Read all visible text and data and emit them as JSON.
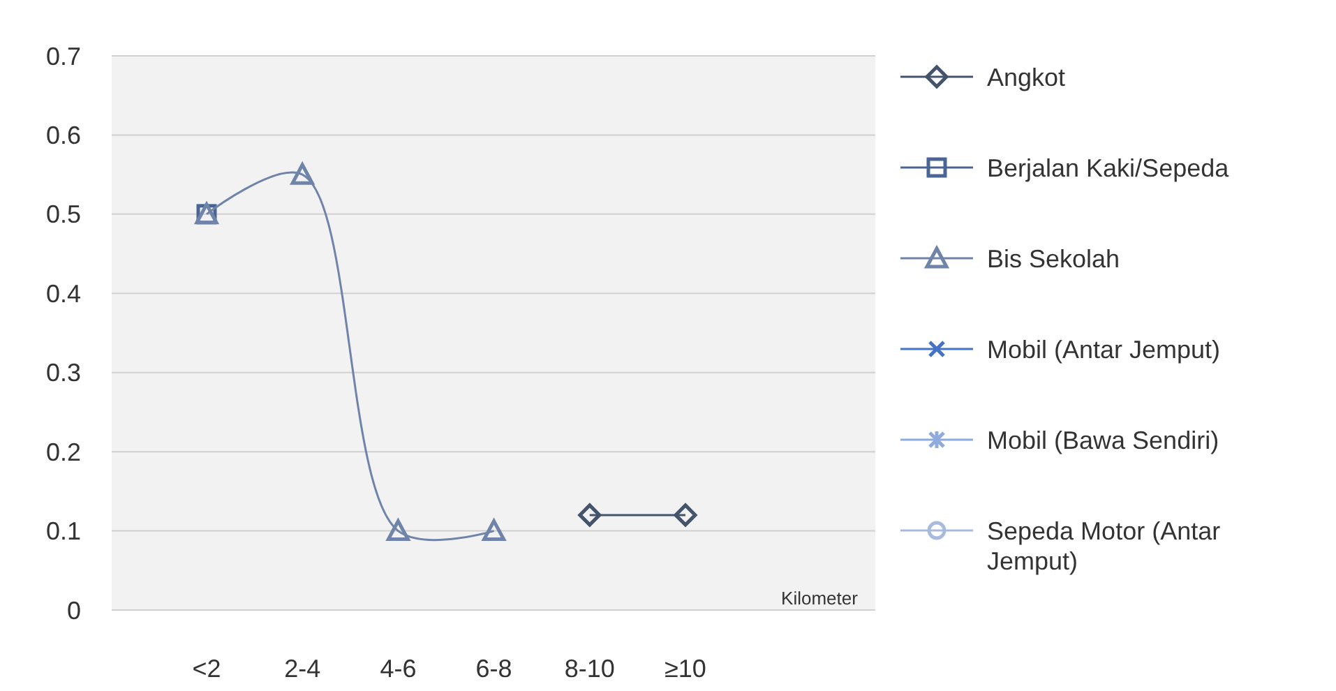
{
  "chart_data": {
    "type": "line",
    "xlabel": "Kilometer",
    "categories": [
      "<2",
      "2-4",
      "4-6",
      "6-8",
      "8-10",
      "≥10"
    ],
    "ylim": [
      0,
      0.7
    ],
    "yticks": [
      0,
      0.1,
      0.2,
      0.3,
      0.4,
      0.5,
      0.6,
      0.7
    ],
    "grid": "y",
    "legend": "right",
    "series": [
      {
        "name": "Angkot",
        "color": "#44546a",
        "marker": "diamond",
        "values": [
          null,
          null,
          null,
          null,
          0.12,
          0.12
        ]
      },
      {
        "name": "Berjalan Kaki/Sepeda",
        "color": "#4a6496",
        "marker": "square",
        "values": [
          0.5,
          null,
          null,
          null,
          null,
          null
        ]
      },
      {
        "name": "Bis Sekolah",
        "color": "#6f84a8",
        "marker": "triangle",
        "values": [
          0.5,
          0.55,
          0.1,
          0.1,
          null,
          null
        ]
      },
      {
        "name": "Mobil (Antar Jemput)",
        "color": "#4472c4",
        "marker": "cross",
        "values": [
          null,
          null,
          null,
          null,
          null,
          null
        ]
      },
      {
        "name": "Mobil (Bawa Sendiri)",
        "color": "#8faadc",
        "marker": "star",
        "values": [
          null,
          null,
          null,
          null,
          null,
          null
        ]
      },
      {
        "name": "Sepeda Motor (Antar Jemput)",
        "color": "#a9bbdc",
        "marker": "circle",
        "values": [
          null,
          null,
          null,
          null,
          null,
          null
        ]
      }
    ]
  }
}
